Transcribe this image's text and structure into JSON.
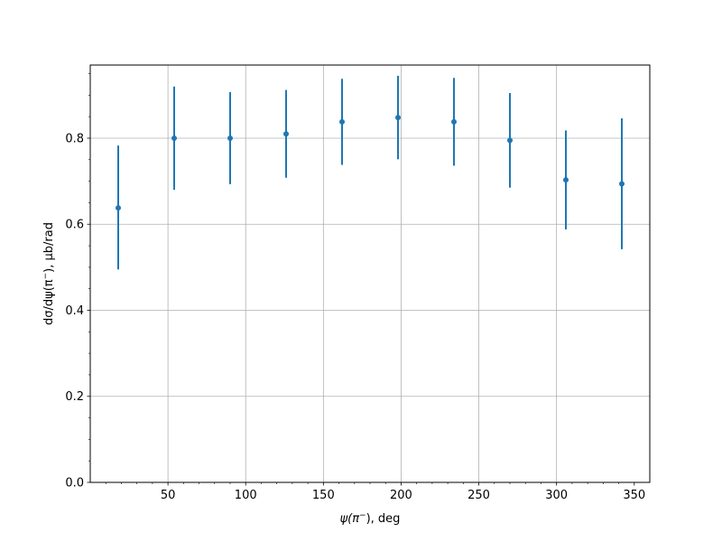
{
  "chart_data": {
    "type": "scatter",
    "title": "",
    "xlabel_parts": [
      "ψ",
      "(π",
      "−",
      "), deg"
    ],
    "ylabel_parts": [
      "dσ/dψ(π",
      "−",
      "), μb/rad"
    ],
    "xlim": [
      0,
      360
    ],
    "ylim": [
      0,
      0.97
    ],
    "x_ticks": [
      50,
      100,
      150,
      200,
      250,
      300,
      350
    ],
    "x_tick_labels": [
      "50",
      "100",
      "150",
      "200",
      "250",
      "300",
      "350"
    ],
    "x_minor_ticks": [
      10,
      20,
      30,
      40,
      60,
      70,
      80,
      90,
      110,
      120,
      130,
      140,
      160,
      170,
      180,
      190,
      210,
      220,
      230,
      240,
      260,
      270,
      280,
      290,
      310,
      320,
      330,
      340
    ],
    "y_ticks": [
      0.0,
      0.2,
      0.4,
      0.6,
      0.8
    ],
    "y_tick_labels": [
      "0.0",
      "0.2",
      "0.4",
      "0.6",
      "0.8"
    ],
    "y_minor_ticks": [
      0.05,
      0.1,
      0.15,
      0.25,
      0.3,
      0.35,
      0.45,
      0.5,
      0.55,
      0.65,
      0.7,
      0.75,
      0.85,
      0.9,
      0.95
    ],
    "grid": true,
    "grid_x": [
      50,
      100,
      150,
      200,
      250,
      300
    ],
    "color": "#1f77b4",
    "series": [
      {
        "x": [
          18,
          54,
          90,
          126,
          162,
          198,
          234,
          270,
          306,
          342
        ],
        "y": [
          0.638,
          0.8,
          0.8,
          0.81,
          0.838,
          0.848,
          0.838,
          0.795,
          0.703,
          0.694
        ],
        "err_low": [
          0.143,
          0.12,
          0.107,
          0.102,
          0.1,
          0.097,
          0.102,
          0.11,
          0.115,
          0.152
        ],
        "err_high": [
          0.145,
          0.12,
          0.107,
          0.102,
          0.1,
          0.097,
          0.102,
          0.11,
          0.115,
          0.152
        ]
      }
    ]
  }
}
